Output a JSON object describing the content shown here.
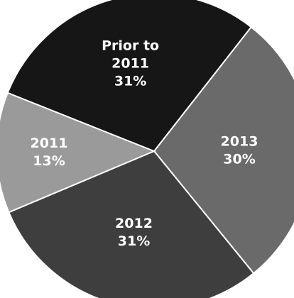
{
  "chart_data": {
    "type": "pie",
    "slices": [
      {
        "label_lines": [
          "2013",
          "30%"
        ],
        "value": 30,
        "color": "#6a6a6a",
        "text_color": "#ffffff"
      },
      {
        "label_lines": [
          "2012",
          "31%"
        ],
        "value": 31,
        "color": "#3e3e3e",
        "text_color": "#ffffff"
      },
      {
        "label_lines": [
          "2011",
          "13%"
        ],
        "value": 13,
        "color": "#9a9a9a",
        "text_color": "#ffffff"
      },
      {
        "label_lines": [
          "Prior to",
          "2011",
          "31%"
        ],
        "value": 31,
        "color": "#161616",
        "text_color": "#ffffff"
      }
    ]
  }
}
